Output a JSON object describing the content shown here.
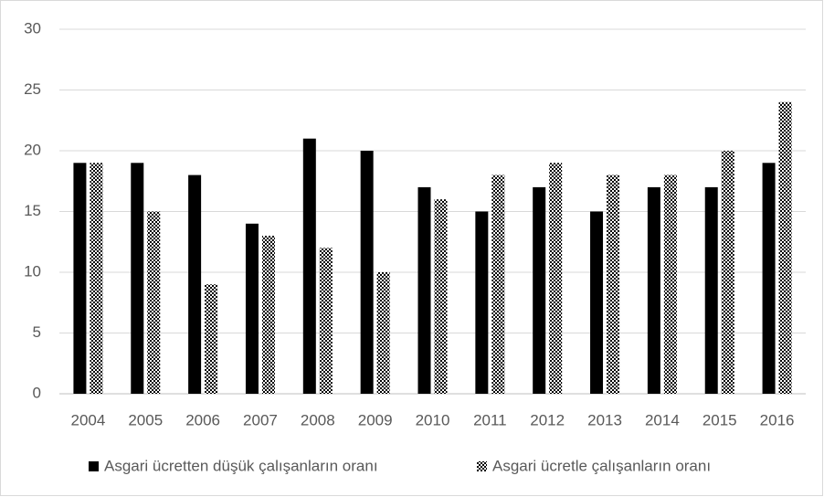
{
  "chart_data": {
    "type": "bar",
    "categories": [
      "2004",
      "2005",
      "2006",
      "2007",
      "2008",
      "2009",
      "2010",
      "2011",
      "2012",
      "2013",
      "2014",
      "2015",
      "2016"
    ],
    "series": [
      {
        "name": "Asgari ücretten düşük çalışanların oranı",
        "color": "#000000",
        "values": [
          19,
          19,
          18,
          14,
          21,
          20,
          17,
          15,
          17,
          15,
          17,
          17,
          19
        ]
      },
      {
        "name": "Asgari ücretle çalışanların oranı",
        "color": "#000000",
        "values": [
          19,
          15,
          9,
          13,
          12,
          10,
          16,
          18,
          19,
          18,
          18,
          20,
          24
        ]
      }
    ],
    "ylim": [
      0,
      30
    ],
    "yticks": [
      0,
      5,
      10,
      15,
      20,
      25,
      30
    ],
    "grid": true,
    "legend": "bottom"
  }
}
